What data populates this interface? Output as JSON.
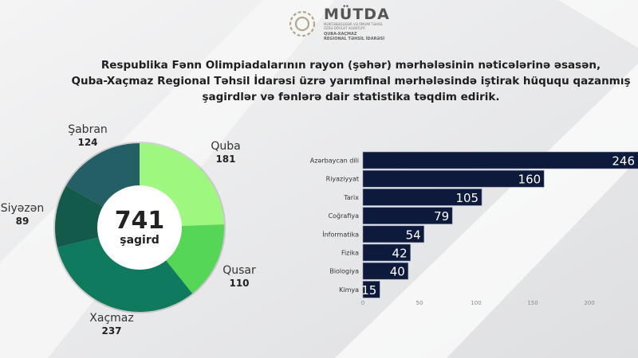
{
  "logo": {
    "name": "MÜTDA",
    "subtitle": "MƏKTƏBƏQƏDƏR VƏ ÜMUMİ TƏHSİL ÜZRƏ DÖVLƏT AGENTLİYİ",
    "region_line1": "QUBA-XAÇMAZ",
    "region_line2": "REGIONAL TƏHSİL İDARƏSİ"
  },
  "title": {
    "line1": "Respublika Fənn Olimpiadalarının rayon (şəhər) mərhələsinin nəticələrinə əsasən,",
    "line2": "Quba-Xaçmaz Regional Təhsil İdarəsi üzrə yarımfinal mərhələsində iştirak hüququ qazanmış",
    "line3": "şagirdlər və fənlərə dair statistika təqdim edirik."
  },
  "chart_data": [
    {
      "type": "pie",
      "style": "donut",
      "center_value": "741",
      "center_label": "şagird",
      "categories": [
        "Quba",
        "Qusar",
        "Xaçmaz",
        "Siyəzən",
        "Şabran"
      ],
      "values": [
        181,
        110,
        237,
        89,
        124
      ],
      "colors": [
        "#9ef77f",
        "#55d657",
        "#0f7a5e",
        "#145a4b",
        "#255f66"
      ]
    },
    {
      "type": "bar",
      "orientation": "horizontal",
      "categories": [
        "Azərbaycan dili",
        "Riyaziyyat",
        "Tarix",
        "Coğrafiya",
        "İnformatika",
        "Fizika",
        "Biologiya",
        "Kimya"
      ],
      "values": [
        246,
        160,
        105,
        79,
        54,
        42,
        40,
        15
      ],
      "xticks": [
        "0",
        "50",
        "100",
        "150",
        "200"
      ],
      "xlim": [
        0,
        246
      ],
      "color": "#0e1a3b",
      "grid": false
    }
  ]
}
